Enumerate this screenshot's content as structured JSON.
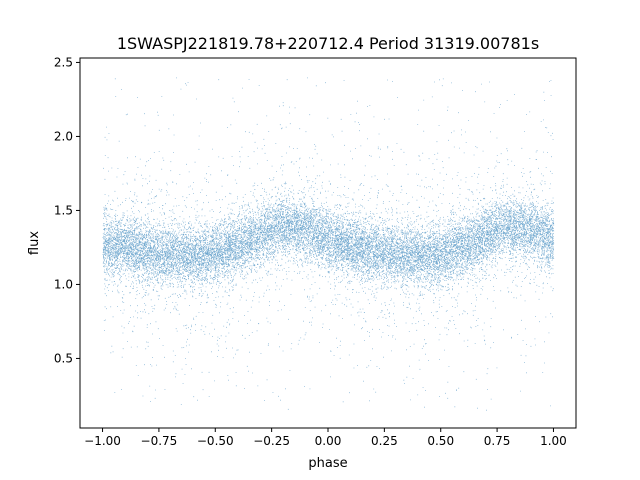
{
  "chart_data": {
    "type": "scatter",
    "title": "1SWASPJ221819.78+220712.4 Period 31319.00781s",
    "xlabel": "phase",
    "ylabel": "flux",
    "xlim": [
      -1.1,
      1.1
    ],
    "ylim": [
      0.03,
      2.53
    ],
    "xticks": [
      -1.0,
      -0.75,
      -0.5,
      -0.25,
      0.0,
      0.25,
      0.5,
      0.75,
      1.0
    ],
    "xtick_labels": [
      "−1.00",
      "−0.75",
      "−0.50",
      "−0.25",
      "0.00",
      "0.25",
      "0.50",
      "0.75",
      "1.00"
    ],
    "yticks": [
      0.5,
      1.0,
      1.5,
      2.0,
      2.5
    ],
    "ytick_labels": [
      "0.5",
      "1.0",
      "1.5",
      "2.0",
      "2.5"
    ],
    "grid": false,
    "legend": false,
    "point_color": "#1f77b4",
    "series": [
      {
        "x": [
          -1.0,
          -0.9,
          -0.8,
          -0.7,
          -0.6,
          -0.5,
          -0.4,
          -0.3,
          -0.2,
          -0.1,
          0.0,
          0.1,
          0.2,
          0.3,
          0.4,
          0.5,
          0.6,
          0.7,
          0.8,
          0.9,
          1.0
        ],
        "y": [
          1.27,
          1.25,
          1.22,
          1.2,
          1.19,
          1.2,
          1.25,
          1.33,
          1.4,
          1.37,
          1.3,
          1.26,
          1.22,
          1.2,
          1.19,
          1.2,
          1.25,
          1.33,
          1.4,
          1.37,
          1.31
        ]
      }
    ]
  }
}
